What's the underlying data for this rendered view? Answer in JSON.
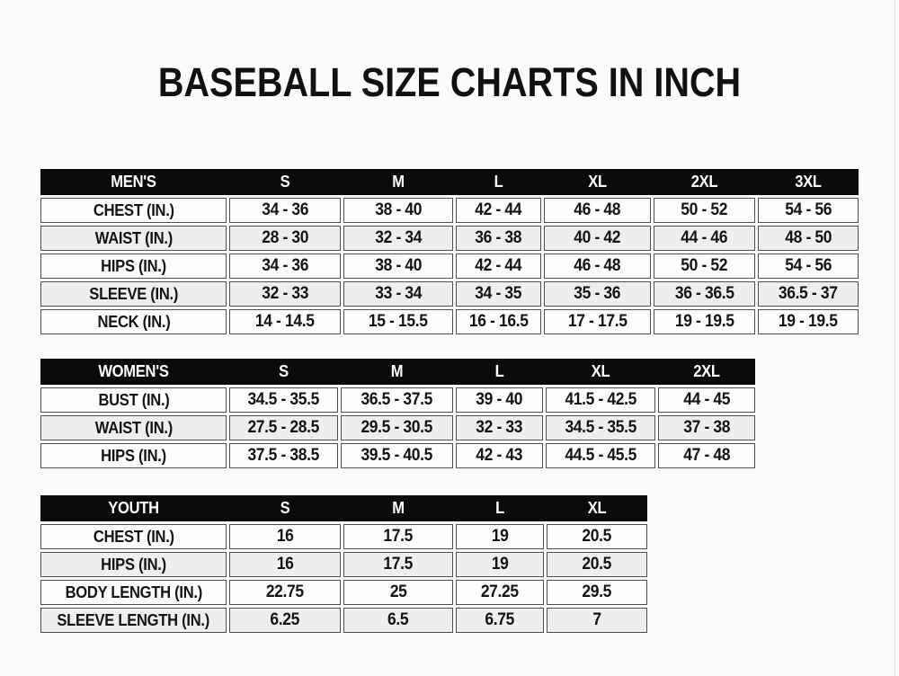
{
  "title": "BASEBALL SIZE CHARTS IN INCH",
  "colors": {
    "page_bg": "#fbfbfa",
    "header_bg": "#0b0b0b",
    "header_text": "#ffffff",
    "row_bg": "#fdfdfd",
    "row_alt_bg": "#efeeec",
    "cell_border": "#4f4f4f",
    "title_text": "#111111",
    "edge_line": "#e5e4e2"
  },
  "chart_data": [
    {
      "type": "table",
      "name": "mens",
      "header": [
        "MEN'S",
        "S",
        "M",
        "L",
        "XL",
        "2XL",
        "3XL"
      ],
      "rows": [
        [
          "CHEST (IN.)",
          "34 - 36",
          "38 - 40",
          "42 - 44",
          "46 - 48",
          "50 - 52",
          "54 - 56"
        ],
        [
          "WAIST (IN.)",
          "28 - 30",
          "32 - 34",
          "36 - 38",
          "40 - 42",
          "44 - 46",
          "48 - 50"
        ],
        [
          "HIPS (IN.)",
          "34 - 36",
          "38 - 40",
          "42 - 44",
          "46 - 48",
          "50 - 52",
          "54 - 56"
        ],
        [
          "SLEEVE (IN.)",
          "32 - 33",
          "33 - 34",
          "34 - 35",
          "35 - 36",
          "36 - 36.5",
          "36.5 - 37"
        ],
        [
          "NECK (IN.)",
          "14 - 14.5",
          "15 - 15.5",
          "16 - 16.5",
          "17 - 17.5",
          "19 - 19.5",
          "19 - 19.5"
        ]
      ]
    },
    {
      "type": "table",
      "name": "womens",
      "header": [
        "WOMEN'S",
        "S",
        "M",
        "L",
        "XL",
        "2XL"
      ],
      "rows": [
        [
          "BUST (IN.)",
          "34.5 - 35.5",
          "36.5 - 37.5",
          "39 - 40",
          "41.5 - 42.5",
          "44 - 45"
        ],
        [
          "WAIST (IN.)",
          "27.5 - 28.5",
          "29.5 - 30.5",
          "32 - 33",
          "34.5 - 35.5",
          "37 - 38"
        ],
        [
          "HIPS (IN.)",
          "37.5 - 38.5",
          "39.5 - 40.5",
          "42 - 43",
          "44.5 - 45.5",
          "47 - 48"
        ]
      ]
    },
    {
      "type": "table",
      "name": "youth",
      "header": [
        "YOUTH",
        "S",
        "M",
        "L",
        "XL"
      ],
      "rows": [
        [
          "CHEST (IN.)",
          "16",
          "17.5",
          "19",
          "20.5"
        ],
        [
          "HIPS (IN.)",
          "16",
          "17.5",
          "19",
          "20.5"
        ],
        [
          "BODY LENGTH (IN.)",
          "22.75",
          "25",
          "27.25",
          "29.5"
        ],
        [
          "SLEEVE LENGTH (IN.)",
          "6.25",
          "6.5",
          "6.75",
          "7"
        ]
      ]
    }
  ]
}
